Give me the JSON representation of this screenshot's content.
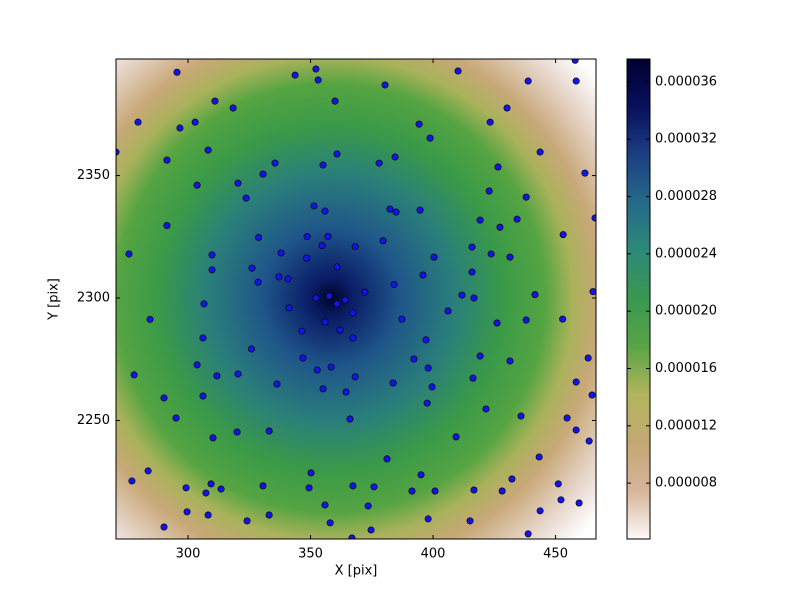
{
  "chart_data": {
    "type": "scatter",
    "xlabel": "X [pix]",
    "ylabel": "Y [pix]",
    "xlim": [
      270.6,
      466.5
    ],
    "ylim": [
      2201.6,
      2397.6
    ],
    "xticks": [
      300,
      350,
      400,
      450
    ],
    "yticks": [
      2250,
      2300,
      2350
    ],
    "color": "#1414e6",
    "x": [
      295.5,
      352.2,
      343.7,
      353.1,
      380.4,
      410.2,
      438.8,
      458.0,
      458.4,
      311.0,
      318.4,
      360.0,
      279.6,
      302.9,
      296.7,
      423.3,
      430.2,
      394.3,
      398.8,
      308.2,
      270.6,
      291.4,
      360.8,
      355.1,
      378.0,
      384.5,
      426.5,
      443.7,
      462.0,
      335.5,
      330.6,
      320.4,
      303.7,
      323.7,
      422.9,
      438.0,
      351.4,
      355.9,
      382.4,
      384.9,
      394.7,
      419.2,
      427.3,
      434.3,
      466.1,
      291.4,
      328.8,
      348.6,
      357.1,
      354.7,
      368.2,
      379.6,
      453.1,
      275.9,
      309.8,
      338.0,
      348.4,
      400.4,
      415.9,
      423.7,
      431.4,
      326.1,
      309.8,
      328.6,
      337.1,
      340.8,
      360.8,
      395.9,
      415.9,
      384.1,
      372.2,
      441.6,
      465.3,
      284.5,
      306.5,
      341.2,
      352.2,
      411.8,
      416.7,
      406.1,
      367.3,
      355.9,
      362.0,
      387.3,
      426.1,
      438.0,
      452.9,
      346.5,
      367.3,
      306.1,
      397.1,
      325.9,
      346.9,
      392.2,
      419.2,
      431.4,
      463.3,
      352.7,
      358.4,
      398.0,
      303.7,
      278.0,
      311.8,
      320.4,
      368.2,
      416.3,
      336.3,
      383.7,
      399.6,
      355.1,
      364.5,
      458.4,
      306.1,
      290.2,
      397.6,
      464.9,
      295.1,
      421.6,
      435.9,
      454.7,
      366.1,
      458.4,
      320.0,
      333.1,
      310.2,
      409.4,
      463.7,
      381.2,
      443.3,
      283.7,
      350.2,
      395.1,
      277.1,
      432.2,
      309.4,
      299.2,
      330.6,
      349.4,
      367.3,
      375.9,
      313.5,
      307.3,
      391.4,
      400.8,
      416.7,
      428.2,
      451.1,
      452.2,
      459.6,
      355.9,
      373.5,
      299.6,
      308.2,
      333.1,
      324.1,
      398.0,
      443.7,
      358.0,
      415.1,
      290.2,
      374.7,
      438.8,
      366.9,
      357.6,
      360.8,
      364.1
    ],
    "values": [
      2392.2,
      2393.5,
      2391.0,
      2389.0,
      2387.0,
      2392.7,
      2388.6,
      2397.1,
      2388.6,
      2380.4,
      2377.6,
      2380.4,
      2371.8,
      2371.8,
      2369.4,
      2371.8,
      2377.6,
      2371.0,
      2365.3,
      2360.4,
      2359.6,
      2356.3,
      2358.8,
      2354.3,
      2355.1,
      2357.6,
      2353.5,
      2359.6,
      2351.0,
      2355.1,
      2350.6,
      2346.9,
      2346.1,
      2340.8,
      2343.7,
      2341.2,
      2337.6,
      2335.5,
      2336.3,
      2335.1,
      2335.9,
      2331.8,
      2328.9,
      2332.2,
      2332.7,
      2329.6,
      2324.7,
      2325.1,
      2325.1,
      2321.4,
      2321.0,
      2323.4,
      2325.9,
      2318.0,
      2317.6,
      2318.4,
      2316.3,
      2316.7,
      2320.8,
      2318.0,
      2316.7,
      2312.2,
      2311.5,
      2306.5,
      2308.6,
      2307.8,
      2312.7,
      2309.4,
      2310.6,
      2305.5,
      2302.4,
      2301.4,
      2302.6,
      2291.3,
      2297.6,
      2296.0,
      2300.0,
      2301.2,
      2300.0,
      2294.7,
      2293.9,
      2290.2,
      2286.9,
      2291.4,
      2289.8,
      2291.0,
      2291.4,
      2286.5,
      2283.7,
      2283.7,
      2282.9,
      2279.2,
      2275.5,
      2275.1,
      2276.3,
      2274.3,
      2275.5,
      2270.6,
      2271.8,
      2271.4,
      2272.7,
      2268.6,
      2268.2,
      2269.0,
      2267.8,
      2267.3,
      2264.9,
      2265.3,
      2263.7,
      2262.9,
      2261.6,
      2265.7,
      2260.0,
      2259.2,
      2257.1,
      2260.4,
      2251.0,
      2254.7,
      2251.8,
      2251.0,
      2250.6,
      2246.1,
      2245.3,
      2245.7,
      2242.9,
      2243.3,
      2241.6,
      2234.3,
      2235.1,
      2229.4,
      2228.6,
      2227.8,
      2225.3,
      2226.1,
      2224.1,
      2222.5,
      2223.3,
      2222.5,
      2223.3,
      2222.9,
      2222.0,
      2220.4,
      2221.2,
      2221.2,
      2221.6,
      2221.2,
      2224.1,
      2217.6,
      2216.3,
      2215.5,
      2215.1,
      2212.7,
      2211.4,
      2211.4,
      2209.0,
      2209.8,
      2213.1,
      2208.2,
      2209.0,
      2206.5,
      2205.3,
      2203.7,
      2202.0,
      2300.8,
      2297.6,
      2299.2
    ],
    "colorbar": {
      "lim": [
        4.1e-06,
        3.76e-05
      ],
      "ticks": [
        {
          "value": 8e-06,
          "label": "0.000008"
        },
        {
          "value": 1.2e-05,
          "label": "0.000012"
        },
        {
          "value": 1.6e-05,
          "label": "0.000016"
        },
        {
          "value": 2e-05,
          "label": "0.000020"
        },
        {
          "value": 2.4e-05,
          "label": "0.000024"
        },
        {
          "value": 2.8e-05,
          "label": "0.000028"
        },
        {
          "value": 3.2e-05,
          "label": "0.000032"
        },
        {
          "value": 3.6e-05,
          "label": "0.000036"
        }
      ],
      "colormap": [
        "#fdf9f8",
        "#d6b59a",
        "#c3a873",
        "#b2b55c",
        "#5aa446",
        "#3a9850",
        "#2d8a78",
        "#256a8a",
        "#1c3f82",
        "#08105e",
        "#00002e"
      ]
    }
  }
}
